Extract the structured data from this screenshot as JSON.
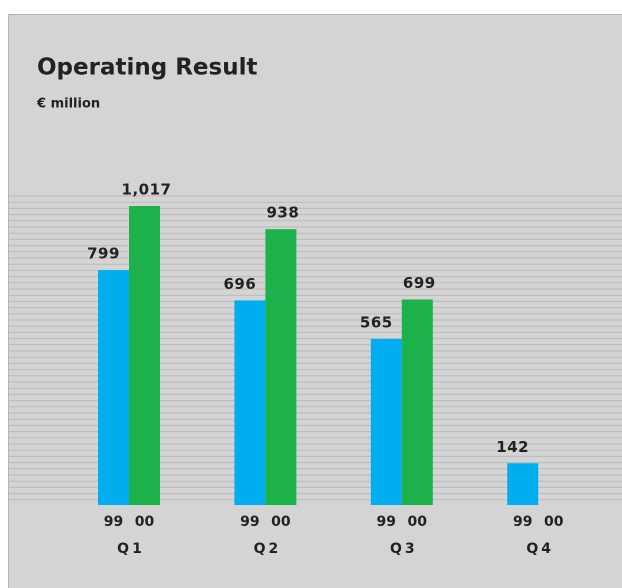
{
  "chart_data": {
    "type": "bar",
    "title": "Operating Result",
    "subtitle": "€ million",
    "categories": [
      "Q1",
      "Q2",
      "Q3",
      "Q4"
    ],
    "series": [
      {
        "name": "99",
        "color": "#00aeef",
        "values": [
          799,
          696,
          565,
          142
        ]
      },
      {
        "name": "00",
        "color": "#1db14b",
        "values": [
          1017,
          938,
          699,
          null
        ],
        "value_labels": [
          "1,017",
          "938",
          "699",
          null
        ]
      }
    ]
  }
}
